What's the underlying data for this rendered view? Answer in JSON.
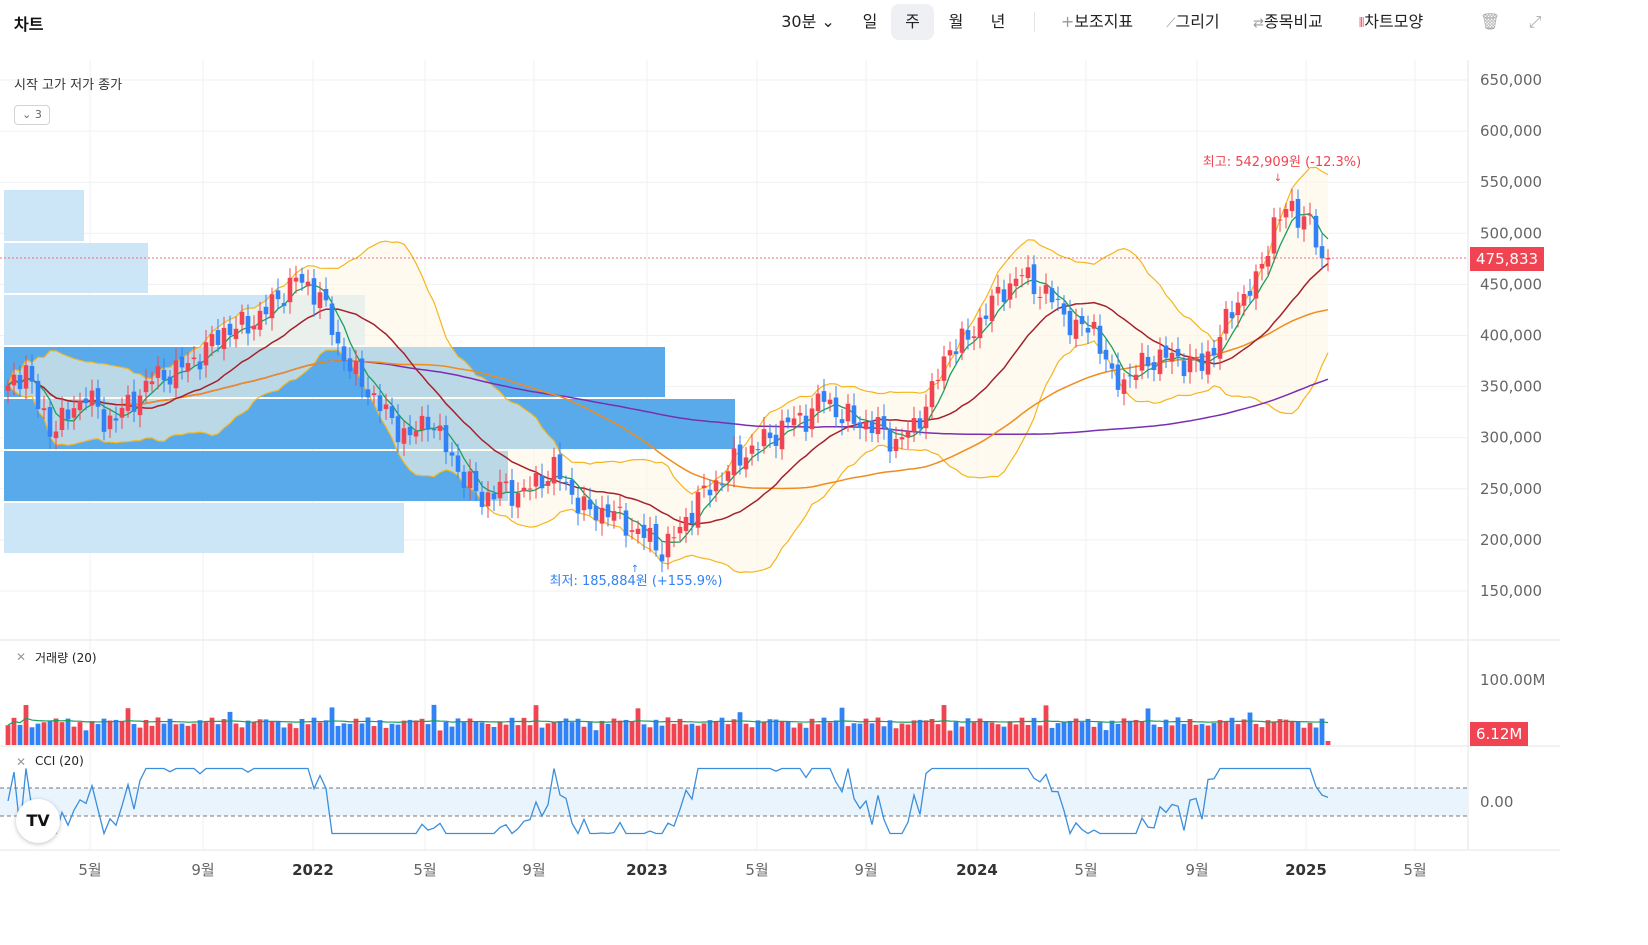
{
  "header": {
    "title": "차트",
    "interval": "30분",
    "periods": [
      "일",
      "주",
      "월",
      "년"
    ],
    "selected_period": "주",
    "tools": [
      "보조지표",
      "그리기",
      "종목비교",
      "차트모양"
    ]
  },
  "legend": {
    "title": "시작 고가 저가 종가",
    "collapse_count": "3"
  },
  "price_axis": {
    "ticks": [
      "650,000",
      "600,000",
      "550,000",
      "500,000",
      "450,000",
      "400,000",
      "350,000",
      "300,000",
      "250,000",
      "200,000",
      "150,000"
    ],
    "values": [
      650000,
      600000,
      550000,
      500000,
      450000,
      400000,
      350000,
      300000,
      250000,
      200000,
      150000
    ]
  },
  "current_price_label": "475,833",
  "volume_axis": {
    "tick": "100.00M"
  },
  "current_volume_label": "6.12M",
  "cci_axis": {
    "tick": "0.00"
  },
  "annotations": {
    "high": "최고: 542,909원 (-12.3%)",
    "low": "최저: 185,884원 (+155.9%)"
  },
  "panes": {
    "volume_label": "거래량 (20)",
    "cci_label": "CCI (20)"
  },
  "time_axis": [
    "5월",
    "9월",
    "2022",
    "5월",
    "9월",
    "2023",
    "5월",
    "9월",
    "2024",
    "5월",
    "9월",
    "2025",
    "5월"
  ],
  "colors": {
    "up": "#f04452",
    "down": "#3182f6",
    "ma5": "#18a05a",
    "ma20": "#a5212c",
    "ma60": "#f08c1e",
    "ma120": "#7b2fb0",
    "bollinger": "#f5b51e",
    "cci": "#3a8fdc",
    "profile_strong": "#4ba3e8",
    "profile_light": "#c7e3f7"
  },
  "chart_data": {
    "type": "candlestick",
    "interval": "weekly",
    "close_path": [
      [
        0,
        345000
      ],
      [
        3,
        370000
      ],
      [
        5,
        330000
      ],
      [
        7,
        310000
      ],
      [
        10,
        320000
      ],
      [
        13,
        345000
      ],
      [
        16,
        315000
      ],
      [
        20,
        330000
      ],
      [
        24,
        358000
      ],
      [
        28,
        365000
      ],
      [
        32,
        380000
      ],
      [
        36,
        405000
      ],
      [
        40,
        410000
      ],
      [
        44,
        430000
      ],
      [
        48,
        455000
      ],
      [
        52,
        440000
      ],
      [
        55,
        390000
      ],
      [
        58,
        360000
      ],
      [
        61,
        340000
      ],
      [
        64,
        315000
      ],
      [
        67,
        300000
      ],
      [
        70,
        320000
      ],
      [
        73,
        290000
      ],
      [
        76,
        260000
      ],
      [
        79,
        240000
      ],
      [
        82,
        250000
      ],
      [
        85,
        245000
      ],
      [
        88,
        255000
      ],
      [
        91,
        270000
      ],
      [
        94,
        245000
      ],
      [
        97,
        225000
      ],
      [
        100,
        230000
      ],
      [
        103,
        215000
      ],
      [
        106,
        205000
      ],
      [
        109,
        190000
      ],
      [
        112,
        210000
      ],
      [
        115,
        240000
      ],
      [
        118,
        255000
      ],
      [
        121,
        275000
      ],
      [
        124,
        290000
      ],
      [
        127,
        300000
      ],
      [
        130,
        315000
      ],
      [
        133,
        320000
      ],
      [
        136,
        340000
      ],
      [
        139,
        320000
      ],
      [
        142,
        315000
      ],
      [
        145,
        310000
      ],
      [
        148,
        295000
      ],
      [
        151,
        310000
      ],
      [
        154,
        345000
      ],
      [
        157,
        390000
      ],
      [
        160,
        395000
      ],
      [
        163,
        425000
      ],
      [
        166,
        445000
      ],
      [
        169,
        460000
      ],
      [
        172,
        445000
      ],
      [
        175,
        430000
      ],
      [
        178,
        405000
      ],
      [
        181,
        410000
      ],
      [
        184,
        355000
      ],
      [
        187,
        360000
      ],
      [
        190,
        375000
      ],
      [
        193,
        380000
      ],
      [
        196,
        375000
      ],
      [
        199,
        370000
      ],
      [
        202,
        400000
      ],
      [
        205,
        435000
      ],
      [
        208,
        450000
      ],
      [
        211,
        510000
      ],
      [
        214,
        525000
      ],
      [
        217,
        510000
      ],
      [
        219,
        470000
      ],
      [
        220,
        475833
      ]
    ],
    "high": {
      "value": 542909,
      "label": "최고: 542,909원 (-12.3%)"
    },
    "low": {
      "value": 185884,
      "label": "최저: 185,884원 (+155.9%)"
    },
    "last_price": 475833,
    "last_volume": "6.12M",
    "y_range": [
      100000,
      680000
    ]
  }
}
